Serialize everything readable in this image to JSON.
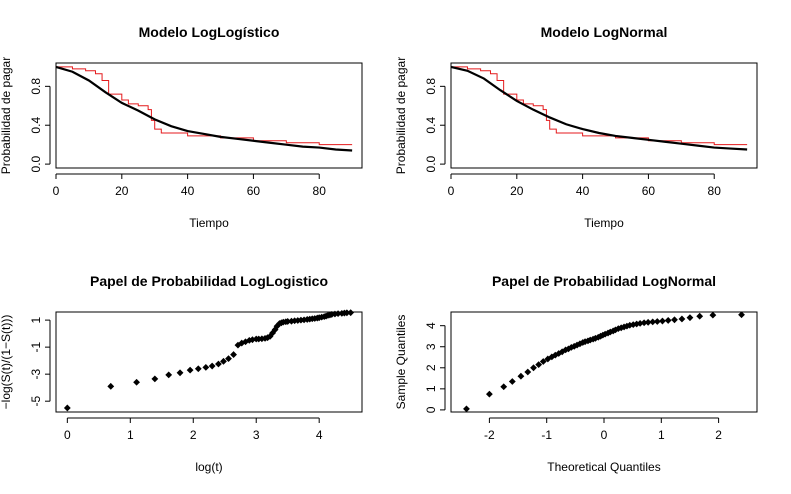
{
  "chart_data": [
    {
      "type": "line",
      "title": "Modelo LogLogístico",
      "xlabel": "Tiempo",
      "ylabel": "Probabilidad de pagar",
      "xlim": [
        0,
        93
      ],
      "ylim": [
        -0.04,
        1.04
      ],
      "xticks": [
        0,
        20,
        40,
        60,
        80
      ],
      "yticks": [
        0.0,
        0.4,
        0.8
      ],
      "ytick_labels": [
        "0.0",
        "0.4",
        "0.8"
      ],
      "series": [
        {
          "step": true,
          "color": "#e41a1c",
          "x": [
            0,
            5,
            9,
            12,
            14,
            16,
            20,
            22,
            25,
            28,
            29,
            30,
            32,
            40,
            50,
            60,
            70,
            80,
            90
          ],
          "y": [
            1.0,
            0.98,
            0.96,
            0.93,
            0.86,
            0.72,
            0.66,
            0.62,
            0.6,
            0.56,
            0.45,
            0.36,
            0.32,
            0.29,
            0.27,
            0.24,
            0.22,
            0.2,
            0.2
          ]
        },
        {
          "step": false,
          "color": "#000000",
          "x": [
            0,
            5,
            10,
            15,
            20,
            25,
            30,
            35,
            40,
            45,
            50,
            55,
            60,
            65,
            70,
            75,
            80,
            85,
            90
          ],
          "y": [
            1.0,
            0.95,
            0.86,
            0.74,
            0.63,
            0.55,
            0.46,
            0.39,
            0.34,
            0.31,
            0.28,
            0.26,
            0.24,
            0.22,
            0.2,
            0.18,
            0.17,
            0.15,
            0.14
          ]
        }
      ]
    },
    {
      "type": "line",
      "title": "Modelo LogNormal",
      "xlabel": "Tiempo",
      "ylabel": "Probabilidad de pagar",
      "xlim": [
        0,
        93
      ],
      "ylim": [
        -0.04,
        1.04
      ],
      "xticks": [
        0,
        20,
        40,
        60,
        80
      ],
      "yticks": [
        0.0,
        0.4,
        0.8
      ],
      "ytick_labels": [
        "0.0",
        "0.4",
        "0.8"
      ],
      "series": [
        {
          "step": true,
          "color": "#e41a1c",
          "x": [
            0,
            5,
            9,
            12,
            14,
            16,
            20,
            22,
            25,
            28,
            29,
            30,
            32,
            40,
            50,
            60,
            70,
            80,
            90
          ],
          "y": [
            1.0,
            0.98,
            0.96,
            0.93,
            0.86,
            0.72,
            0.66,
            0.62,
            0.6,
            0.56,
            0.45,
            0.36,
            0.32,
            0.29,
            0.27,
            0.24,
            0.22,
            0.2,
            0.2
          ]
        },
        {
          "step": false,
          "color": "#000000",
          "x": [
            0,
            5,
            10,
            15,
            20,
            25,
            30,
            35,
            40,
            45,
            50,
            55,
            60,
            65,
            70,
            75,
            80,
            85,
            90
          ],
          "y": [
            1.0,
            0.96,
            0.88,
            0.76,
            0.65,
            0.56,
            0.48,
            0.41,
            0.36,
            0.32,
            0.29,
            0.27,
            0.25,
            0.23,
            0.21,
            0.19,
            0.17,
            0.16,
            0.15
          ]
        }
      ]
    },
    {
      "type": "scatter",
      "title": "Papel de Probabilidad LogLogistico",
      "xlabel": "log(t)",
      "ylabel": "−log(S(t)/(1−S(t)))",
      "xlim": [
        -0.18,
        4.68
      ],
      "ylim": [
        -5.8,
        1.6
      ],
      "xticks": [
        0,
        1,
        2,
        3,
        4
      ],
      "yticks": [
        -5,
        -3,
        -1,
        1
      ],
      "ytick_labels": [
        "-5",
        "-3",
        "-1",
        "1"
      ],
      "series": [
        {
          "marker": "diamond",
          "x": [
            0.0,
            0.69,
            1.1,
            1.39,
            1.61,
            1.79,
            1.95,
            2.08,
            2.2,
            2.3,
            2.4,
            2.48,
            2.56,
            2.64,
            2.71,
            2.77,
            2.83,
            2.89,
            2.94,
            3.0,
            3.04,
            3.09,
            3.14,
            3.18,
            3.22,
            3.26,
            3.3,
            3.33,
            3.37,
            3.4,
            3.43,
            3.47,
            3.5,
            3.56,
            3.61,
            3.66,
            3.71,
            3.76,
            3.81,
            3.85,
            3.89,
            3.93,
            3.97,
            4.0,
            4.04,
            4.08,
            4.11,
            4.14,
            4.17,
            4.2,
            4.25,
            4.3,
            4.36,
            4.4,
            4.44,
            4.5
          ],
          "y": [
            -5.5,
            -3.9,
            -3.6,
            -3.35,
            -3.05,
            -2.9,
            -2.7,
            -2.6,
            -2.5,
            -2.4,
            -2.25,
            -2.05,
            -1.85,
            -1.55,
            -0.85,
            -0.7,
            -0.6,
            -0.5,
            -0.45,
            -0.4,
            -0.4,
            -0.38,
            -0.35,
            -0.3,
            -0.2,
            0.05,
            0.3,
            0.55,
            0.75,
            0.8,
            0.85,
            0.88,
            0.9,
            0.92,
            0.95,
            0.97,
            1.0,
            1.02,
            1.05,
            1.07,
            1.1,
            1.12,
            1.15,
            1.18,
            1.22,
            1.26,
            1.3,
            1.35,
            1.38,
            1.42,
            1.45,
            1.48,
            1.5,
            1.52,
            1.54,
            1.55
          ]
        }
      ]
    },
    {
      "type": "scatter",
      "title": "Papel de Probabilidad LogNormal",
      "xlabel": "Theoretical Quantiles",
      "ylabel": "Sample Quantiles",
      "xlim": [
        -2.67,
        2.67
      ],
      "ylim": [
        -0.1,
        4.65
      ],
      "xticks": [
        -2,
        -1,
        0,
        1,
        2
      ],
      "yticks": [
        0,
        1,
        2,
        3,
        4
      ],
      "ytick_labels": [
        "0",
        "1",
        "2",
        "3",
        "4"
      ],
      "series": [
        {
          "marker": "diamond",
          "x": [
            -2.4,
            -2.0,
            -1.75,
            -1.6,
            -1.45,
            -1.33,
            -1.23,
            -1.14,
            -1.06,
            -0.98,
            -0.91,
            -0.85,
            -0.79,
            -0.73,
            -0.67,
            -0.62,
            -0.57,
            -0.52,
            -0.47,
            -0.42,
            -0.37,
            -0.33,
            -0.28,
            -0.24,
            -0.19,
            -0.15,
            -0.1,
            -0.06,
            -0.02,
            0.02,
            0.07,
            0.11,
            0.16,
            0.2,
            0.25,
            0.3,
            0.35,
            0.4,
            0.45,
            0.51,
            0.57,
            0.63,
            0.7,
            0.77,
            0.85,
            0.93,
            1.02,
            1.12,
            1.23,
            1.36,
            1.5,
            1.67,
            1.9,
            2.4
          ],
          "y": [
            0.05,
            0.75,
            1.1,
            1.35,
            1.6,
            1.8,
            2.0,
            2.15,
            2.3,
            2.42,
            2.52,
            2.6,
            2.68,
            2.76,
            2.85,
            2.9,
            2.97,
            3.02,
            3.08,
            3.14,
            3.2,
            3.24,
            3.28,
            3.32,
            3.36,
            3.4,
            3.45,
            3.5,
            3.55,
            3.6,
            3.65,
            3.7,
            3.75,
            3.8,
            3.86,
            3.9,
            3.94,
            3.98,
            4.02,
            4.05,
            4.08,
            4.11,
            4.14,
            4.16,
            4.18,
            4.2,
            4.22,
            4.25,
            4.28,
            4.32,
            4.38,
            4.45,
            4.5,
            4.52
          ]
        }
      ]
    }
  ]
}
